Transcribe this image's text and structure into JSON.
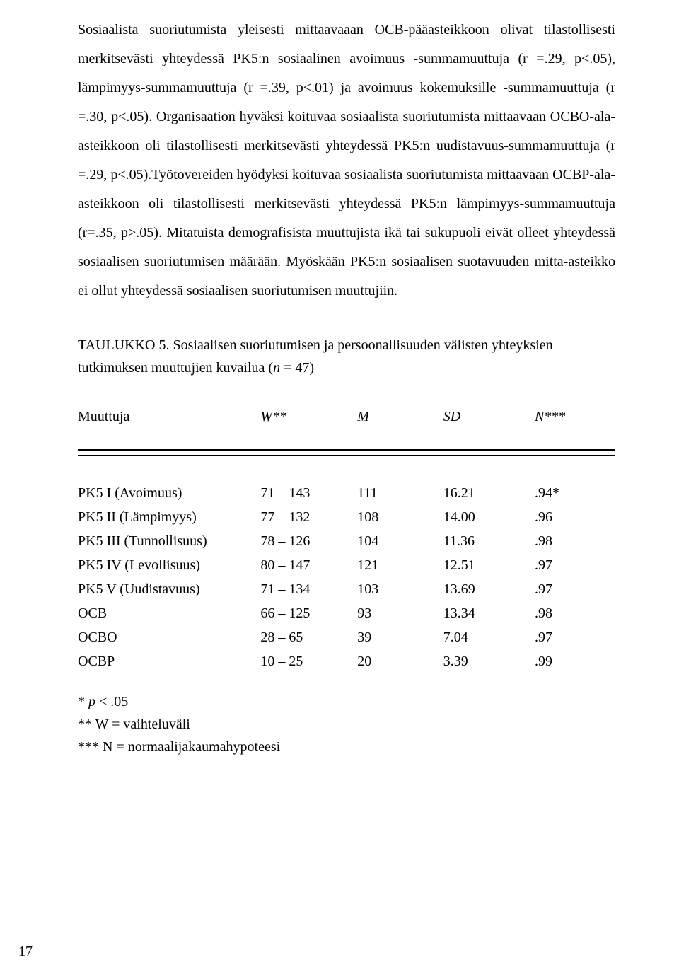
{
  "paragraphs": {
    "p1": "Sosiaalista suoriutumista yleisesti mittaavaaan OCB-pääasteikkoon olivat tilastollisesti merkitsevästi yhteydessä  PK5:n sosiaalinen avoimuus -summamuuttuja (r =.29, p<.05), lämpimyys-summamuuttuja (r =.39, p<.01) ja avoimuus kokemuksille -summamuuttuja (r =.30, p<.05). Organisaation hyväksi koituvaa sosiaalista suoriutumista mittaavaan OCBO-ala-asteikkoon oli tilastollisesti merkitsevästi yhteydessä PK5:n uudistavuus-summamuuttuja (r =.29, p<.05).Työtovereiden hyödyksi koituvaa sosiaalista suoriutumista mittaavaan OCBP-ala-asteikkoon oli tilastollisesti merkitsevästi yhteydessä PK5:n lämpimyys-summamuuttuja (r=.35, p>.05). Mitatuista demografisista muuttujista ikä tai sukupuoli eivät olleet yhteydessä sosiaalisen suoriutumisen määrään. Myöskään PK5:n sosiaalisen suotavuuden mitta-asteikko ei ollut yhteydessä sosiaalisen suoriutumisen muuttujiin."
  },
  "caption": {
    "prefix": "TAULUKKO 5. Sosiaalisen suoriutumisen ja persoonallisuuden välisten yhteyksien tutkimuksen muuttujien kuvailua (",
    "n_italic": "n",
    "mid": " = 47)"
  },
  "table": {
    "columns": {
      "variable": "Muuttuja",
      "w": "W**",
      "m": "M",
      "sd": "SD",
      "n": "N***"
    },
    "rows": [
      {
        "var": "PK5 I (Avoimuus)",
        "w": "71 – 143",
        "m": "111",
        "sd": "16.21",
        "n": ".94*"
      },
      {
        "var": "PK5 II (Lämpimyys)",
        "w": "77 – 132",
        "m": "108",
        "sd": "14.00",
        "n": ".96"
      },
      {
        "var": "PK5 III (Tunnollisuus)",
        "w": "78 – 126",
        "m": "104",
        "sd": "11.36",
        "n": ".98"
      },
      {
        "var": "PK5 IV (Levollisuus)",
        "w": "80 – 147",
        "m": "121",
        "sd": "12.51",
        "n": ".97"
      },
      {
        "var": "PK5 V (Uudistavuus)",
        "w": "71 – 134",
        "m": "103",
        "sd": "13.69",
        "n": ".97"
      },
      {
        "var": "OCB",
        "w": "66 – 125",
        "m": "93",
        "sd": "13.34",
        "n": ".98"
      },
      {
        "var": "OCBO",
        "w": "28 – 65",
        "m": "39",
        "sd": "7.04",
        "n": ".97"
      },
      {
        "var": "OCBP",
        "w": "10 – 25",
        "m": "20",
        "sd": "3.39",
        "n": ".99"
      }
    ]
  },
  "notes": {
    "l1_pre": "* ",
    "l1_p": "p",
    "l1_post": " < .05",
    "l2": "** W = vaihteluväli",
    "l3": "*** N = normaalijakaumahypoteesi"
  },
  "page_number": "17"
}
